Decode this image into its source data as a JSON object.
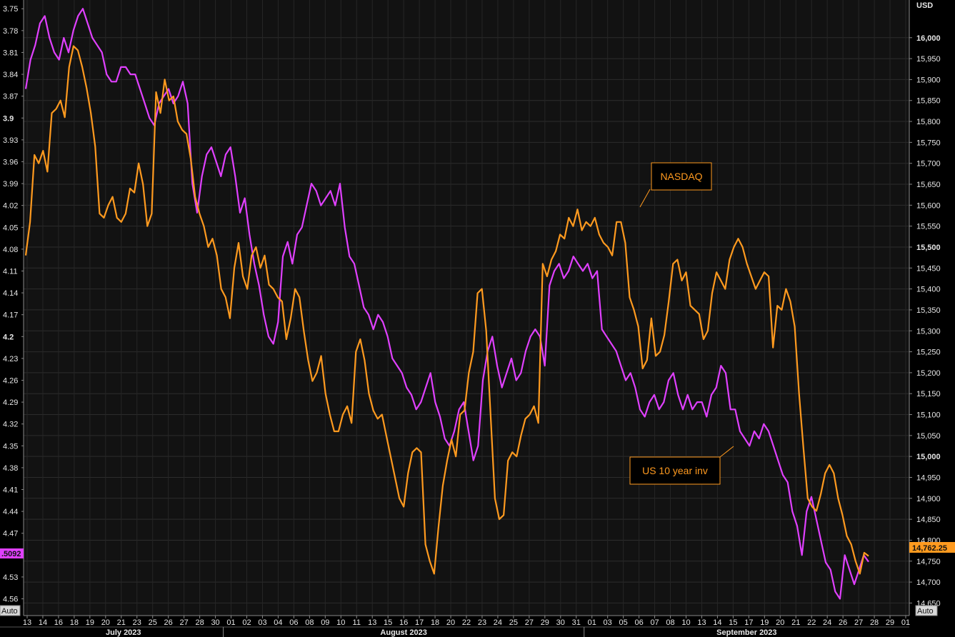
{
  "chart_data": {
    "type": "line",
    "right_axis": {
      "unit_label": "USD",
      "ylim": [
        14620,
        16090
      ],
      "ticks": [
        "16,000",
        "15,950",
        "15,900",
        "15,850",
        "15,800",
        "15,750",
        "15,700",
        "15,650",
        "15,600",
        "15,550",
        "15,500",
        "15,450",
        "15,400",
        "15,350",
        "15,300",
        "15,250",
        "15,200",
        "15,150",
        "15,100",
        "15,050",
        "15,000",
        "14,950",
        "14,900",
        "14,850",
        "14,800",
        "14,750",
        "14,700",
        "14,650"
      ],
      "bold_ticks": [
        "16,000",
        "15,500",
        "15,000"
      ],
      "last_value_label": "14,762.25"
    },
    "left_axis": {
      "inverted": true,
      "ylim": [
        3.738,
        4.583
      ],
      "ticks": [
        "3.75",
        "3.78",
        "3.81",
        "3.84",
        "3.87",
        "3.9",
        "3.93",
        "3.96",
        "3.99",
        "4.02",
        "4.05",
        "4.08",
        "4.11",
        "4.14",
        "4.17",
        "4.2",
        "4.23",
        "4.26",
        "4.29",
        "4.32",
        "4.35",
        "4.38",
        "4.41",
        "4.44",
        "4.47",
        "4.5",
        "4.53",
        "4.56"
      ],
      "bold_ticks": [
        "3.9",
        "4.2",
        "4.5"
      ],
      "last_value_label": ".5092"
    },
    "x_ticks": [
      "13",
      "14",
      "16",
      "18",
      "19",
      "20",
      "21",
      "23",
      "25",
      "26",
      "27",
      "28",
      "30",
      "01",
      "02",
      "03",
      "04",
      "06",
      "08",
      "09",
      "10",
      "11",
      "13",
      "15",
      "16",
      "17",
      "18",
      "20",
      "22",
      "23",
      "24",
      "25",
      "27",
      "29",
      "30",
      "31",
      "01",
      "03",
      "05",
      "06",
      "07",
      "08",
      "10",
      "13",
      "14",
      "15",
      "17",
      "19",
      "20",
      "21",
      "22",
      "24",
      "26",
      "27",
      "28",
      "29",
      "01"
    ],
    "months": [
      "July 2023",
      "August 2023",
      "September 2023"
    ],
    "series": [
      {
        "name": "NASDAQ",
        "axis": "right",
        "color": "#ff9a1f",
        "values": [
          15480,
          15560,
          15720,
          15700,
          15730,
          15680,
          15820,
          15830,
          15850,
          15810,
          15930,
          15980,
          15970,
          15930,
          15880,
          15820,
          15740,
          15580,
          15570,
          15600,
          15620,
          15570,
          15560,
          15580,
          15640,
          15630,
          15700,
          15650,
          15550,
          15580,
          15870,
          15820,
          15900,
          15850,
          15860,
          15800,
          15780,
          15770,
          15710,
          15620,
          15580,
          15550,
          15500,
          15520,
          15480,
          15400,
          15380,
          15330,
          15450,
          15510,
          15430,
          15400,
          15480,
          15500,
          15450,
          15480,
          15410,
          15400,
          15380,
          15370,
          15280,
          15330,
          15400,
          15380,
          15300,
          15230,
          15180,
          15200,
          15240,
          15150,
          15100,
          15060,
          15060,
          15100,
          15120,
          15080,
          15250,
          15280,
          15230,
          15150,
          15110,
          15090,
          15100,
          15050,
          15000,
          14950,
          14900,
          14880,
          14960,
          15010,
          15020,
          15010,
          14790,
          14750,
          14720,
          14830,
          14930,
          14990,
          15040,
          15000,
          15100,
          15110,
          15200,
          15250,
          15390,
          15400,
          15300,
          15100,
          14900,
          14850,
          14860,
          14990,
          15010,
          15000,
          15050,
          15090,
          15100,
          15120,
          15080,
          15460,
          15430,
          15470,
          15490,
          15530,
          15520,
          15570,
          15550,
          15590,
          15540,
          15560,
          15550,
          15570,
          15530,
          15510,
          15500,
          15480,
          15560,
          15560,
          15510,
          15380,
          15350,
          15310,
          15210,
          15230,
          15330,
          15240,
          15250,
          15290,
          15370,
          15460,
          15470,
          15420,
          15440,
          15360,
          15350,
          15340,
          15280,
          15300,
          15390,
          15440,
          15420,
          15400,
          15470,
          15500,
          15520,
          15500,
          15460,
          15430,
          15400,
          15420,
          15440,
          15430,
          15260,
          15360,
          15350,
          15400,
          15370,
          15310,
          15150,
          15020,
          14900,
          14880,
          14870,
          14910,
          14960,
          14980,
          14960,
          14900,
          14860,
          14810,
          14790,
          14750,
          14720,
          14770,
          14762.25
        ]
      },
      {
        "name": "US 10 year inv",
        "axis": "left",
        "color": "#e040ff",
        "values": [
          3.86,
          3.82,
          3.8,
          3.77,
          3.76,
          3.79,
          3.81,
          3.82,
          3.79,
          3.81,
          3.78,
          3.76,
          3.75,
          3.77,
          3.79,
          3.8,
          3.81,
          3.84,
          3.85,
          3.85,
          3.83,
          3.83,
          3.84,
          3.84,
          3.86,
          3.88,
          3.9,
          3.91,
          3.88,
          3.87,
          3.86,
          3.88,
          3.87,
          3.85,
          3.88,
          3.99,
          4.03,
          3.98,
          3.95,
          3.94,
          3.96,
          3.98,
          3.95,
          3.94,
          3.98,
          4.03,
          4.01,
          4.06,
          4.1,
          4.13,
          4.17,
          4.2,
          4.21,
          4.18,
          4.09,
          4.07,
          4.1,
          4.06,
          4.05,
          4.02,
          3.99,
          4.0,
          4.02,
          4.01,
          4.0,
          4.02,
          3.99,
          4.05,
          4.09,
          4.1,
          4.13,
          4.16,
          4.17,
          4.19,
          4.17,
          4.18,
          4.2,
          4.23,
          4.24,
          4.25,
          4.27,
          4.28,
          4.3,
          4.29,
          4.27,
          4.25,
          4.29,
          4.31,
          4.34,
          4.35,
          4.33,
          4.3,
          4.29,
          4.33,
          4.37,
          4.35,
          4.26,
          4.22,
          4.2,
          4.24,
          4.27,
          4.25,
          4.23,
          4.26,
          4.25,
          4.22,
          4.2,
          4.19,
          4.2,
          4.24,
          4.13,
          4.11,
          4.1,
          4.12,
          4.11,
          4.09,
          4.1,
          4.11,
          4.1,
          4.12,
          4.11,
          4.19,
          4.2,
          4.21,
          4.22,
          4.24,
          4.26,
          4.25,
          4.27,
          4.3,
          4.31,
          4.29,
          4.28,
          4.3,
          4.29,
          4.26,
          4.25,
          4.28,
          4.3,
          4.28,
          4.3,
          4.29,
          4.29,
          4.31,
          4.28,
          4.27,
          4.24,
          4.25,
          4.3,
          4.3,
          4.33,
          4.34,
          4.35,
          4.33,
          4.34,
          4.32,
          4.33,
          4.35,
          4.37,
          4.39,
          4.4,
          4.44,
          4.46,
          4.5,
          4.44,
          4.42,
          4.45,
          4.48,
          4.51,
          4.52,
          4.55,
          4.56,
          4.5,
          4.52,
          4.54,
          4.52,
          4.5,
          4.5092
        ]
      }
    ],
    "annotations": [
      "NASDAQ",
      "US 10 year inv"
    ],
    "axis_buttons": [
      "Auto",
      "Auto"
    ],
    "grid": true
  }
}
